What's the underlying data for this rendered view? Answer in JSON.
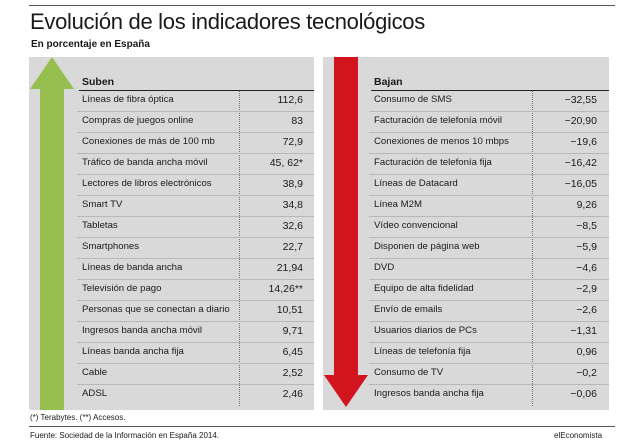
{
  "title": "Evolución de los indicadores tecnológicos",
  "subtitle": "En porcentaje en España",
  "chart_data": [
    {
      "type": "table",
      "header": "Suben",
      "arrow_color": "#97bf4f",
      "rows": [
        {
          "label": "Líneas de fibra óptica",
          "value": "112,6"
        },
        {
          "label": "Compras de juegos online",
          "value": "83"
        },
        {
          "label": "Conexiones de más de 100 mb",
          "value": "72,9"
        },
        {
          "label": "Tráfico de banda ancha móvil",
          "value": "45, 62*"
        },
        {
          "label": "Lectores de libros electrónicos",
          "value": "38,9"
        },
        {
          "label": "Smart TV",
          "value": "34,8"
        },
        {
          "label": "Tabletas",
          "value": "32,6"
        },
        {
          "label": "Smartphones",
          "value": "22,7"
        },
        {
          "label": "Líneas de banda ancha",
          "value": "21,94"
        },
        {
          "label": "Televisión de pago",
          "value": "14,26**"
        },
        {
          "label": "Personas que se conectan a diario",
          "value": "10,51"
        },
        {
          "label": "Ingresos banda ancha móvil",
          "value": "9,71"
        },
        {
          "label": "Líneas banda ancha fija",
          "value": "6,45"
        },
        {
          "label": "Cable",
          "value": "2,52"
        },
        {
          "label": "ADSL",
          "value": "2,46"
        }
      ]
    },
    {
      "type": "table",
      "header": "Bajan",
      "arrow_color": "#d2141e",
      "rows": [
        {
          "label": "Consumo de SMS",
          "value": "−32,55"
        },
        {
          "label": "Facturación de telefonía móvil",
          "value": "−20,90"
        },
        {
          "label": "Conexiones de menos 10 mbps",
          "value": "−19,6"
        },
        {
          "label": "Facturación de telefonía fija",
          "value": "−16,42"
        },
        {
          "label": "Líneas de Datacard",
          "value": "−16,05"
        },
        {
          "label": "Línea M2M",
          "value": "9,26"
        },
        {
          "label": "Vídeo convencional",
          "value": "−8,5"
        },
        {
          "label": "Disponen de página web",
          "value": "−5,9"
        },
        {
          "label": "DVD",
          "value": "−4,6"
        },
        {
          "label": "Equipo de alta fidelidad",
          "value": "−2,9"
        },
        {
          "label": "Envío de emails",
          "value": "−2,6"
        },
        {
          "label": "Usuarios diarios de PCs",
          "value": "−1,31"
        },
        {
          "label": "Líneas de telefonía fija",
          "value": "0,96"
        },
        {
          "label": "Consumo de TV",
          "value": "−0,2"
        },
        {
          "label": "Ingresos banda ancha fija",
          "value": "−0,06"
        }
      ]
    }
  ],
  "footnote": "(*) Terabytes. (**) Accesos.",
  "source": "Fuente: Sociedad de la Información en España 2014.",
  "brand": "elEconomista"
}
